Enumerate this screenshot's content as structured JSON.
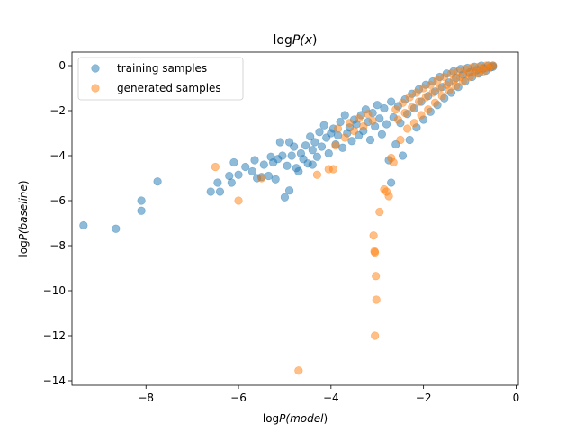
{
  "chart_data": {
    "type": "scatter",
    "title": "log P(x)",
    "title_parts": {
      "prefix": "log",
      "var": "P",
      "arg": "x"
    },
    "xlabel": "log P(model)",
    "xlabel_parts": {
      "prefix": "log",
      "var": "P",
      "arg": "model"
    },
    "ylabel": "log P(baseline)",
    "ylabel_parts": {
      "prefix": "log",
      "var": "P",
      "arg": "baseline"
    },
    "xlim": [
      -9.6,
      0.05
    ],
    "ylim": [
      -14.2,
      0.6
    ],
    "x_ticks": [
      -8,
      -6,
      -4,
      -2,
      0
    ],
    "x_tick_labels": [
      "−8",
      "−6",
      "−4",
      "−2",
      "0"
    ],
    "y_ticks": [
      -14,
      -12,
      -10,
      -8,
      -6,
      -4,
      -2,
      0
    ],
    "y_tick_labels": [
      "−14",
      "−12",
      "−10",
      "−8",
      "−6",
      "−4",
      "−2",
      "0"
    ],
    "grid": false,
    "legend_position": "upper-left",
    "series": [
      {
        "name": "training samples",
        "color": "#1f77b4",
        "marker_alpha": 0.5,
        "points": [
          [
            -9.35,
            -7.1
          ],
          [
            -8.65,
            -7.25
          ],
          [
            -8.1,
            -6.0
          ],
          [
            -8.1,
            -6.45
          ],
          [
            -7.75,
            -5.15
          ],
          [
            -6.6,
            -5.6
          ],
          [
            -6.45,
            -5.2
          ],
          [
            -6.4,
            -5.6
          ],
          [
            -6.2,
            -4.9
          ],
          [
            -6.15,
            -5.2
          ],
          [
            -6.1,
            -4.3
          ],
          [
            -6.0,
            -4.85
          ],
          [
            -5.85,
            -4.5
          ],
          [
            -5.7,
            -4.7
          ],
          [
            -5.65,
            -4.2
          ],
          [
            -5.6,
            -5.0
          ],
          [
            -5.5,
            -4.95
          ],
          [
            -5.45,
            -4.4
          ],
          [
            -5.35,
            -4.9
          ],
          [
            -5.3,
            -4.05
          ],
          [
            -5.25,
            -4.3
          ],
          [
            -5.2,
            -5.05
          ],
          [
            -5.15,
            -4.15
          ],
          [
            -5.1,
            -3.4
          ],
          [
            -5.05,
            -4.0
          ],
          [
            -5.0,
            -5.85
          ],
          [
            -4.95,
            -4.45
          ],
          [
            -4.9,
            -3.4
          ],
          [
            -4.9,
            -5.55
          ],
          [
            -4.85,
            -4.0
          ],
          [
            -4.8,
            -3.6
          ],
          [
            -4.75,
            -4.55
          ],
          [
            -4.7,
            -4.7
          ],
          [
            -4.65,
            -3.9
          ],
          [
            -4.6,
            -4.15
          ],
          [
            -4.55,
            -3.55
          ],
          [
            -4.5,
            -4.35
          ],
          [
            -4.45,
            -3.15
          ],
          [
            -4.4,
            -3.75
          ],
          [
            -4.4,
            -4.4
          ],
          [
            -4.35,
            -3.4
          ],
          [
            -4.3,
            -4.05
          ],
          [
            -4.25,
            -2.95
          ],
          [
            -4.2,
            -3.6
          ],
          [
            -4.15,
            -2.65
          ],
          [
            -4.1,
            -3.2
          ],
          [
            -4.05,
            -3.9
          ],
          [
            -4.0,
            -3.0
          ],
          [
            -3.95,
            -2.8
          ],
          [
            -3.9,
            -3.5
          ],
          [
            -3.85,
            -3.1
          ],
          [
            -3.8,
            -2.5
          ],
          [
            -3.75,
            -3.65
          ],
          [
            -3.7,
            -2.2
          ],
          [
            -3.65,
            -3.0
          ],
          [
            -3.6,
            -2.75
          ],
          [
            -3.55,
            -3.35
          ],
          [
            -3.5,
            -2.4
          ],
          [
            -3.45,
            -2.6
          ],
          [
            -3.4,
            -3.1
          ],
          [
            -3.35,
            -2.2
          ],
          [
            -3.3,
            -2.9
          ],
          [
            -3.25,
            -1.95
          ],
          [
            -3.2,
            -2.5
          ],
          [
            -3.15,
            -3.3
          ],
          [
            -3.1,
            -2.1
          ],
          [
            -3.05,
            -2.7
          ],
          [
            -3.0,
            -1.75
          ],
          [
            -2.95,
            -2.35
          ],
          [
            -2.9,
            -3.05
          ],
          [
            -2.85,
            -1.9
          ],
          [
            -2.8,
            -2.6
          ],
          [
            -2.75,
            -4.2
          ],
          [
            -2.7,
            -5.2
          ],
          [
            -2.7,
            -1.6
          ],
          [
            -2.65,
            -2.3
          ],
          [
            -2.6,
            -3.5
          ],
          [
            -2.55,
            -1.8
          ],
          [
            -2.5,
            -2.55
          ],
          [
            -2.45,
            -4.0
          ],
          [
            -2.4,
            -1.5
          ],
          [
            -2.35,
            -2.15
          ],
          [
            -2.3,
            -3.3
          ],
          [
            -2.25,
            -1.25
          ],
          [
            -2.2,
            -1.9
          ],
          [
            -2.15,
            -2.75
          ],
          [
            -2.1,
            -1.05
          ],
          [
            -2.05,
            -1.6
          ],
          [
            -2.0,
            -2.4
          ],
          [
            -1.95,
            -0.85
          ],
          [
            -1.9,
            -1.35
          ],
          [
            -1.85,
            -2.05
          ],
          [
            -1.8,
            -0.7
          ],
          [
            -1.75,
            -1.15
          ],
          [
            -1.7,
            -1.75
          ],
          [
            -1.65,
            -0.5
          ],
          [
            -1.6,
            -0.95
          ],
          [
            -1.55,
            -1.45
          ],
          [
            -1.5,
            -0.35
          ],
          [
            -1.45,
            -0.75
          ],
          [
            -1.4,
            -1.2
          ],
          [
            -1.35,
            -0.25
          ],
          [
            -1.3,
            -0.55
          ],
          [
            -1.25,
            -0.95
          ],
          [
            -1.2,
            -0.15
          ],
          [
            -1.15,
            -0.4
          ],
          [
            -1.1,
            -0.7
          ],
          [
            -1.05,
            -0.1
          ],
          [
            -1.0,
            -0.3
          ],
          [
            -0.95,
            -0.5
          ],
          [
            -0.9,
            -0.05
          ],
          [
            -0.85,
            -0.2
          ],
          [
            -0.8,
            -0.35
          ],
          [
            -0.75,
            0.0
          ],
          [
            -0.7,
            -0.12
          ],
          [
            -0.65,
            -0.22
          ],
          [
            -0.6,
            0.0
          ],
          [
            -0.55,
            -0.08
          ],
          [
            -0.5,
            -0.05
          ],
          [
            -0.5,
            0.0
          ]
        ]
      },
      {
        "name": "generated samples",
        "color": "#ff7f0e",
        "marker_alpha": 0.5,
        "points": [
          [
            -6.5,
            -4.5
          ],
          [
            -6.0,
            -6.0
          ],
          [
            -5.5,
            -5.0
          ],
          [
            -4.7,
            -13.55
          ],
          [
            -4.3,
            -4.85
          ],
          [
            -4.05,
            -4.6
          ],
          [
            -3.95,
            -4.6
          ],
          [
            -3.9,
            -3.55
          ],
          [
            -3.85,
            -2.8
          ],
          [
            -3.7,
            -3.2
          ],
          [
            -3.6,
            -2.55
          ],
          [
            -3.5,
            -2.9
          ],
          [
            -3.4,
            -2.35
          ],
          [
            -3.3,
            -2.7
          ],
          [
            -3.2,
            -2.15
          ],
          [
            -3.1,
            -2.45
          ],
          [
            -3.08,
            -7.55
          ],
          [
            -3.06,
            -8.25
          ],
          [
            -3.05,
            -8.3
          ],
          [
            -3.05,
            -12.0
          ],
          [
            -3.03,
            -9.35
          ],
          [
            -3.02,
            -10.4
          ],
          [
            -2.95,
            -6.5
          ],
          [
            -2.85,
            -5.5
          ],
          [
            -2.8,
            -5.6
          ],
          [
            -2.75,
            -5.8
          ],
          [
            -2.7,
            -4.1
          ],
          [
            -2.65,
            -4.3
          ],
          [
            -2.6,
            -1.95
          ],
          [
            -2.55,
            -2.4
          ],
          [
            -2.5,
            -3.3
          ],
          [
            -2.45,
            -1.65
          ],
          [
            -2.4,
            -2.1
          ],
          [
            -2.35,
            -2.8
          ],
          [
            -2.3,
            -1.4
          ],
          [
            -2.25,
            -1.85
          ],
          [
            -2.2,
            -2.55
          ],
          [
            -2.15,
            -1.2
          ],
          [
            -2.1,
            -1.6
          ],
          [
            -2.05,
            -2.2
          ],
          [
            -2.0,
            -1.0
          ],
          [
            -1.95,
            -1.4
          ],
          [
            -1.9,
            -1.95
          ],
          [
            -1.85,
            -0.85
          ],
          [
            -1.8,
            -1.2
          ],
          [
            -1.75,
            -1.65
          ],
          [
            -1.7,
            -0.65
          ],
          [
            -1.65,
            -1.0
          ],
          [
            -1.6,
            -1.35
          ],
          [
            -1.55,
            -0.5
          ],
          [
            -1.5,
            -0.85
          ],
          [
            -1.45,
            -1.1
          ],
          [
            -1.4,
            -0.35
          ],
          [
            -1.35,
            -0.65
          ],
          [
            -1.3,
            -0.9
          ],
          [
            -1.25,
            -0.25
          ],
          [
            -1.2,
            -0.5
          ],
          [
            -1.15,
            -0.7
          ],
          [
            -1.1,
            -0.15
          ],
          [
            -1.05,
            -0.35
          ],
          [
            -1.0,
            -0.5
          ],
          [
            -0.95,
            -0.08
          ],
          [
            -0.9,
            -0.22
          ],
          [
            -0.85,
            -0.35
          ],
          [
            -0.8,
            -0.05
          ],
          [
            -0.75,
            -0.15
          ],
          [
            -0.7,
            -0.25
          ],
          [
            -0.65,
            0.0
          ],
          [
            -0.6,
            -0.1
          ],
          [
            -0.55,
            -0.05
          ],
          [
            -0.5,
            0.0
          ]
        ]
      }
    ]
  }
}
